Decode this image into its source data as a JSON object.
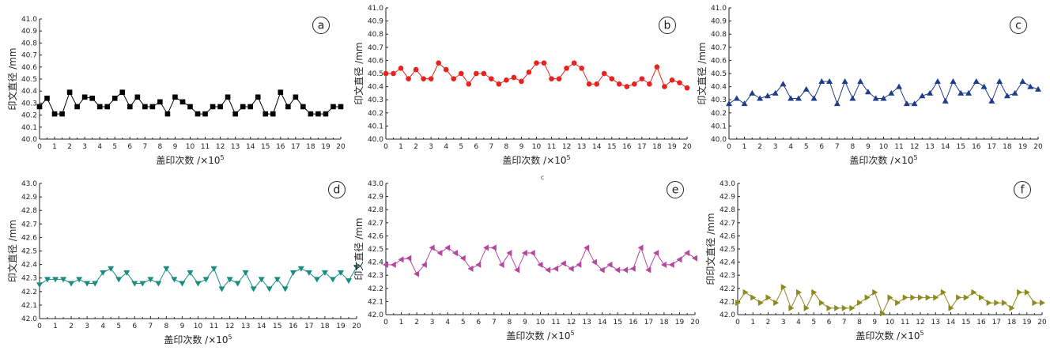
{
  "chart_data": [
    {
      "type": "line",
      "panel_label": "a",
      "ylabel": "印文直径 /mm",
      "xlabel": "盖印次数 /×10",
      "xlabel_exp": "5",
      "xlim": [
        0,
        20
      ],
      "ylim": [
        40.0,
        41.0
      ],
      "x_ticks": [
        "0",
        "1",
        "2",
        "3",
        "4",
        "5",
        "6",
        "7",
        "8",
        "9",
        "10",
        "11",
        "12",
        "13",
        "14",
        "15",
        "16",
        "17",
        "18",
        "19",
        "20"
      ],
      "y_ticks": [
        "40.0",
        "40.1",
        "40.2",
        "40.3",
        "40.4",
        "40.5",
        "40.6",
        "40.7",
        "40.8",
        "40.9",
        "41.0"
      ],
      "grid": false,
      "series": [
        {
          "marker": "square",
          "color": "#000000",
          "x": [
            0,
            0.5,
            1,
            1.5,
            2,
            2.5,
            3,
            3.5,
            4,
            4.5,
            5,
            5.5,
            6,
            6.5,
            7,
            7.5,
            8,
            8.5,
            9,
            9.5,
            10,
            10.5,
            11,
            11.5,
            12,
            12.5,
            13,
            13.5,
            14,
            14.5,
            15,
            15.5,
            16,
            16.5,
            17,
            17.5,
            18,
            18.5,
            19,
            19.5,
            20
          ],
          "y": [
            40.27,
            40.34,
            40.21,
            40.21,
            40.39,
            40.27,
            40.35,
            40.34,
            40.27,
            40.27,
            40.34,
            40.39,
            40.27,
            40.35,
            40.27,
            40.27,
            40.31,
            40.21,
            40.35,
            40.31,
            40.27,
            40.21,
            40.21,
            40.27,
            40.27,
            40.35,
            40.21,
            40.27,
            40.27,
            40.35,
            40.21,
            40.21,
            40.39,
            40.27,
            40.35,
            40.27,
            40.21,
            40.21,
            40.21,
            40.27,
            40.27
          ]
        }
      ]
    },
    {
      "type": "line",
      "panel_label": "b",
      "ylabel": "印文直径 /mm",
      "xlabel": "盖印次数 /×10",
      "xlabel_exp": "5",
      "xlim": [
        0,
        20
      ],
      "ylim": [
        40.0,
        41.0
      ],
      "x_ticks": [
        "0",
        "1",
        "2",
        "3",
        "4",
        "5",
        "6",
        "7",
        "8",
        "9",
        "10",
        "11",
        "12",
        "13",
        "14",
        "15",
        "16",
        "17",
        "18",
        "19",
        "20"
      ],
      "y_ticks": [
        "40.0",
        "40.1",
        "40.2",
        "40.3",
        "40.4",
        "40.5",
        "40.6",
        "40.7",
        "40.8",
        "40.9",
        "41.0"
      ],
      "grid": false,
      "series": [
        {
          "marker": "circle",
          "color": "#e8221c",
          "x": [
            0,
            0.5,
            1,
            1.5,
            2,
            2.5,
            3,
            3.5,
            4,
            4.5,
            5,
            5.5,
            6,
            6.5,
            7,
            7.5,
            8,
            8.5,
            9,
            9.5,
            10,
            10.5,
            11,
            11.5,
            12,
            12.5,
            13,
            13.5,
            14,
            14.5,
            15,
            15.5,
            16,
            16.5,
            17,
            17.5,
            18,
            18.5,
            19,
            19.5,
            20
          ],
          "y": [
            40.5,
            40.5,
            40.54,
            40.46,
            40.53,
            40.46,
            40.46,
            40.58,
            40.53,
            40.46,
            40.5,
            40.42,
            40.5,
            40.5,
            40.46,
            40.42,
            40.45,
            40.47,
            40.44,
            40.51,
            40.58,
            40.58,
            40.46,
            40.46,
            40.54,
            40.58,
            40.54,
            40.42,
            40.42,
            40.5,
            40.46,
            40.42,
            40.4,
            40.42,
            40.46,
            40.42,
            40.55,
            40.4,
            40.45,
            40.43,
            40.39
          ]
        }
      ]
    },
    {
      "type": "line",
      "panel_label": "c",
      "ylabel": "印文直径 /mm",
      "xlabel": "盖印次数 /×10",
      "xlabel_exp": "5",
      "xlim": [
        0,
        20
      ],
      "ylim": [
        40.0,
        41.0
      ],
      "x_ticks": [
        "0",
        "1",
        "2",
        "3",
        "4",
        "5",
        "6",
        "7",
        "8",
        "9",
        "10",
        "11",
        "12",
        "13",
        "14",
        "15",
        "16",
        "17",
        "18",
        "19",
        "20"
      ],
      "y_ticks": [
        "40.0",
        "40.1",
        "40.2",
        "40.3",
        "40.4",
        "40.5",
        "40.6",
        "40.7",
        "40.8",
        "40.9",
        "41.0"
      ],
      "grid": false,
      "series": [
        {
          "marker": "triangle-up",
          "color": "#1f3c88",
          "x": [
            0,
            0.5,
            1,
            1.5,
            2,
            2.5,
            3,
            3.5,
            4,
            4.5,
            5,
            5.5,
            6,
            6.5,
            7,
            7.5,
            8,
            8.5,
            9,
            9.5,
            10,
            10.5,
            11,
            11.5,
            12,
            12.5,
            13,
            13.5,
            14,
            14.5,
            15,
            15.5,
            16,
            16.5,
            17,
            17.5,
            18,
            18.5,
            19,
            19.5,
            20
          ],
          "y": [
            40.27,
            40.31,
            40.27,
            40.35,
            40.31,
            40.33,
            40.35,
            40.42,
            40.31,
            40.31,
            40.38,
            40.31,
            40.44,
            40.44,
            40.27,
            40.44,
            40.31,
            40.44,
            40.36,
            40.31,
            40.31,
            40.35,
            40.4,
            40.27,
            40.27,
            40.33,
            40.35,
            40.44,
            40.29,
            40.44,
            40.35,
            40.35,
            40.44,
            40.4,
            40.29,
            40.44,
            40.33,
            40.35,
            40.44,
            40.4,
            40.38
          ]
        }
      ]
    },
    {
      "type": "line",
      "panel_label": "d",
      "ylabel": "印文直径 /mm",
      "xlabel": "盖印次数 /×10",
      "xlabel_exp": "5",
      "xlim": [
        0,
        20
      ],
      "ylim": [
        42.0,
        43.0
      ],
      "x_ticks": [
        "0",
        "1",
        "2",
        "3",
        "4",
        "5",
        "6",
        "7",
        "8",
        "9",
        "10",
        "11",
        "12",
        "13",
        "14",
        "15",
        "16",
        "17",
        "18",
        "19",
        "20"
      ],
      "y_ticks": [
        "42.0",
        "42.1",
        "42.2",
        "42.3",
        "42.4",
        "42.5",
        "42.6",
        "42.7",
        "42.8",
        "42.9",
        "43.0"
      ],
      "grid": false,
      "series": [
        {
          "marker": "triangle-down",
          "color": "#1a8c80",
          "x": [
            0,
            0.5,
            1,
            1.5,
            2,
            2.5,
            3,
            3.5,
            4,
            4.5,
            5,
            5.5,
            6,
            6.5,
            7,
            7.5,
            8,
            8.5,
            9,
            9.5,
            10,
            10.5,
            11,
            11.5,
            12,
            12.5,
            13,
            13.5,
            14,
            14.5,
            15,
            15.5,
            16,
            16.5,
            17,
            17.5,
            18,
            18.5,
            19,
            19.5,
            20
          ],
          "y": [
            42.25,
            42.29,
            42.29,
            42.29,
            42.26,
            42.29,
            42.26,
            42.26,
            42.34,
            42.37,
            42.29,
            42.34,
            42.26,
            42.26,
            42.29,
            42.26,
            42.37,
            42.29,
            42.26,
            42.34,
            42.26,
            42.29,
            42.37,
            42.22,
            42.29,
            42.26,
            42.34,
            42.22,
            42.29,
            42.22,
            42.29,
            42.22,
            42.34,
            42.37,
            42.34,
            42.29,
            42.34,
            42.29,
            42.34,
            42.28,
            42.38
          ]
        }
      ]
    },
    {
      "type": "line",
      "panel_label": "e",
      "ylabel": "印文直径 /mm",
      "xlabel": "盖印次数 /×10",
      "xlabel_exp": "5",
      "xlim": [
        0,
        20
      ],
      "ylim": [
        42.0,
        43.0
      ],
      "x_ticks": [
        "0",
        "1",
        "2",
        "3",
        "4",
        "5",
        "6",
        "7",
        "8",
        "9",
        "10",
        "11",
        "12",
        "13",
        "14",
        "15",
        "16",
        "17",
        "18",
        "19",
        "20"
      ],
      "y_ticks": [
        "42.0",
        "42.1",
        "42.2",
        "42.3",
        "42.4",
        "42.5",
        "42.6",
        "42.7",
        "42.8",
        "42.9",
        "43.0"
      ],
      "grid": false,
      "series": [
        {
          "marker": "triangle-left",
          "color": "#b5489e",
          "x": [
            0,
            0.5,
            1,
            1.5,
            2,
            2.5,
            3,
            3.5,
            4,
            4.5,
            5,
            5.5,
            6,
            6.5,
            7,
            7.5,
            8,
            8.5,
            9,
            9.5,
            10,
            10.5,
            11,
            11.5,
            12,
            12.5,
            13,
            13.5,
            14,
            14.5,
            15,
            15.5,
            16,
            16.5,
            17,
            17.5,
            18,
            18.5,
            19,
            19.5,
            20
          ],
          "y": [
            42.38,
            42.38,
            42.42,
            42.43,
            42.31,
            42.38,
            42.51,
            42.47,
            42.51,
            42.47,
            42.43,
            42.35,
            42.38,
            42.51,
            42.51,
            42.38,
            42.47,
            42.34,
            42.47,
            42.47,
            42.38,
            42.34,
            42.35,
            42.39,
            42.35,
            42.38,
            42.51,
            42.4,
            42.34,
            42.38,
            42.34,
            42.34,
            42.35,
            42.51,
            42.34,
            42.47,
            42.38,
            42.38,
            42.42,
            42.47,
            42.43
          ]
        }
      ]
    },
    {
      "type": "line",
      "panel_label": "f",
      "ylabel": "印印文直径 /mm",
      "xlabel": "盖印次数 /×10",
      "xlabel_exp": "5",
      "xlim": [
        0,
        20
      ],
      "ylim": [
        42.0,
        43.0
      ],
      "x_ticks": [
        "0",
        "1",
        "2",
        "3",
        "4",
        "5",
        "6",
        "7",
        "8",
        "9",
        "10",
        "11",
        "12",
        "13",
        "14",
        "15",
        "16",
        "17",
        "18",
        "19",
        "20"
      ],
      "y_ticks": [
        "42.0",
        "42.1",
        "42.2",
        "42.3",
        "42.4",
        "42.5",
        "42.6",
        "42.7",
        "42.8",
        "42.9",
        "43.0"
      ],
      "grid": false,
      "series": [
        {
          "marker": "triangle-right",
          "color": "#8d8a1f",
          "x": [
            0,
            0.5,
            1,
            1.5,
            2,
            2.5,
            3,
            3.5,
            4,
            4.5,
            5,
            5.5,
            6,
            6.5,
            7,
            7.5,
            8,
            8.5,
            9,
            9.5,
            10,
            10.5,
            11,
            11.5,
            12,
            12.5,
            13,
            13.5,
            14,
            14.5,
            15,
            15.5,
            16,
            16.5,
            17,
            17.5,
            18,
            18.5,
            19,
            19.5,
            20
          ],
          "y": [
            42.09,
            42.17,
            42.13,
            42.09,
            42.13,
            42.09,
            42.21,
            42.05,
            42.17,
            42.05,
            42.17,
            42.09,
            42.05,
            42.05,
            42.05,
            42.05,
            42.09,
            42.13,
            42.17,
            42.01,
            42.13,
            42.09,
            42.13,
            42.13,
            42.13,
            42.13,
            42.13,
            42.17,
            42.05,
            42.13,
            42.13,
            42.17,
            42.13,
            42.09,
            42.09,
            42.09,
            42.05,
            42.17,
            42.17,
            42.09,
            42.09
          ]
        }
      ]
    }
  ],
  "stray_mark": "c"
}
